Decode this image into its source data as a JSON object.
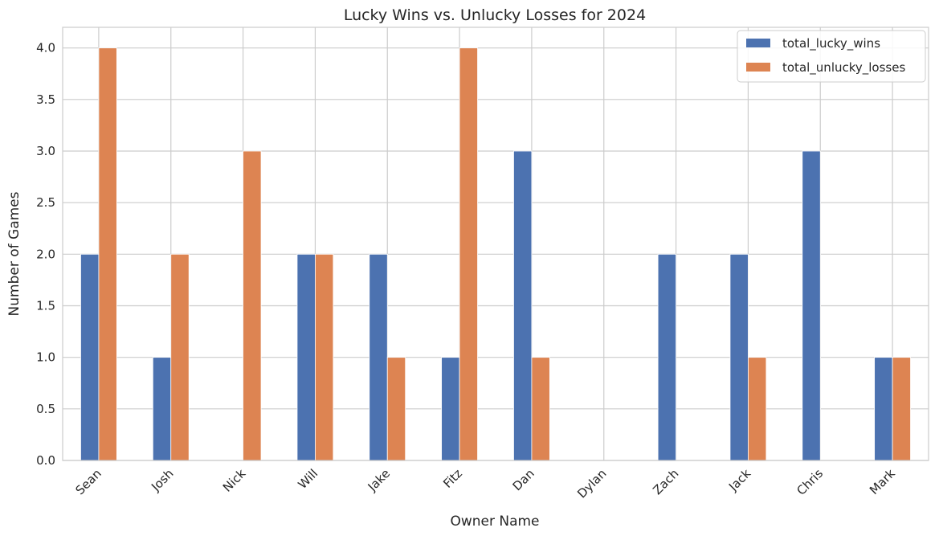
{
  "chart_data": {
    "type": "bar",
    "title": "Lucky Wins vs. Unlucky Losses for 2024",
    "xlabel": "Owner Name",
    "ylabel": "Number of Games",
    "categories": [
      "Sean",
      "Josh",
      "Nick",
      "Will",
      "Jake",
      "Fitz",
      "Dan",
      "Dylan",
      "Zach",
      "Jack",
      "Chris",
      "Mark"
    ],
    "series": [
      {
        "name": "total_lucky_wins",
        "color": "#4c72b0",
        "values": [
          2,
          1,
          0,
          2,
          2,
          1,
          3,
          0,
          2,
          2,
          3,
          1
        ]
      },
      {
        "name": "total_unlucky_losses",
        "color": "#dd8452",
        "values": [
          4,
          2,
          3,
          2,
          1,
          4,
          1,
          0,
          0,
          1,
          0,
          1
        ]
      }
    ],
    "ylim": [
      0,
      4.2
    ],
    "yticks": [
      "0.0",
      "0.5",
      "1.0",
      "1.5",
      "2.0",
      "2.5",
      "3.0",
      "3.5",
      "4.0"
    ],
    "grid": true,
    "legend_position": "top-right",
    "colors": {
      "grid": "#cccccc",
      "spine": "#cccccc",
      "text": "#262626"
    }
  }
}
